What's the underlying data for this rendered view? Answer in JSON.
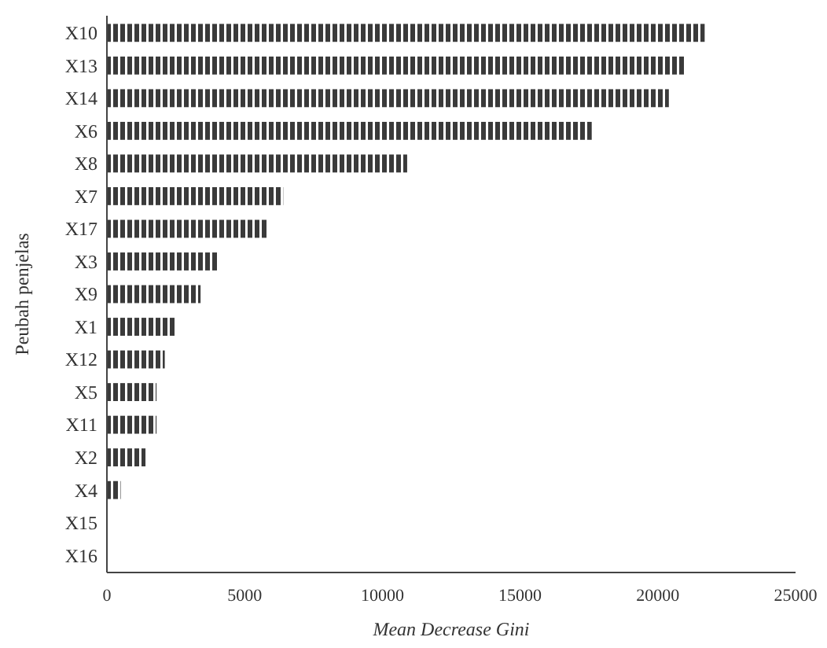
{
  "chart_data": {
    "type": "bar",
    "orientation": "horizontal",
    "xlabel": "Mean Decrease Gini",
    "ylabel": "Peubah penjelas",
    "categories": [
      "X10",
      "X13",
      "X14",
      "X6",
      "X8",
      "X7",
      "X17",
      "X3",
      "X9",
      "X1",
      "X12",
      "X5",
      "X11",
      "X2",
      "X4",
      "X15",
      "X16"
    ],
    "values": [
      21700,
      21000,
      20400,
      17600,
      10900,
      6400,
      5800,
      4000,
      3400,
      2500,
      2100,
      1800,
      1800,
      1400,
      500,
      0,
      0
    ],
    "color": "#3a3a3a",
    "xlim": [
      0,
      25000
    ],
    "xticks": [
      0,
      5000,
      10000,
      15000,
      20000,
      25000
    ],
    "grid": false
  }
}
